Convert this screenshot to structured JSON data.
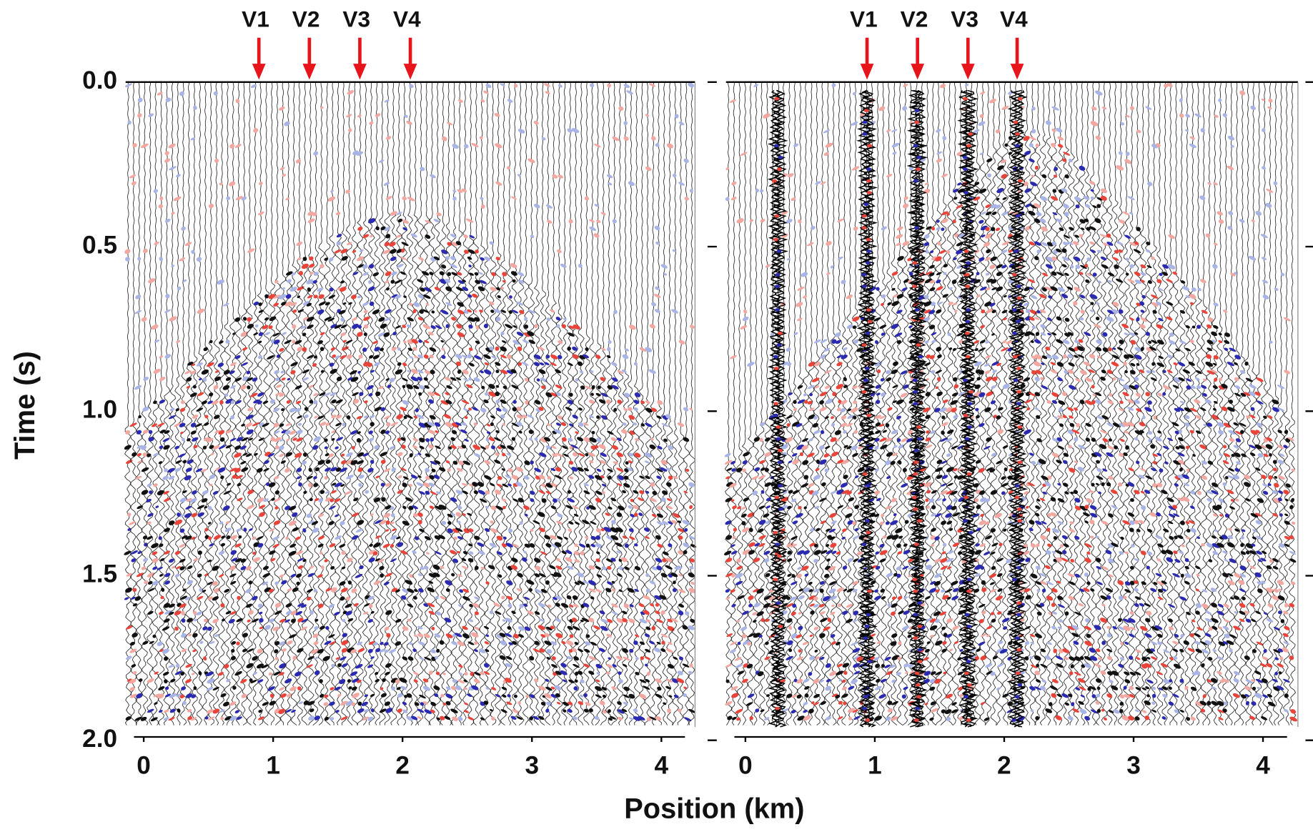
{
  "chart_data": [
    {
      "type": "seismic",
      "xlabel": "Position (km)",
      "ylabel": "Time (s)",
      "xlim": [
        -0.14,
        4.26
      ],
      "xticks": [
        0,
        1,
        2,
        3,
        4
      ],
      "ylim": [
        0,
        2
      ],
      "yticks": [
        {
          "value": 0,
          "label": "0.0"
        },
        0.5,
        {
          "value": 1,
          "label": "1.0"
        },
        1.5,
        {
          "value": 2,
          "label": "2.0"
        }
      ],
      "annotations": [
        {
          "text": "V1",
          "x": 0.89
        },
        {
          "text": "V2",
          "x": 1.28
        },
        {
          "text": "V3",
          "x": 1.67
        },
        {
          "text": "V4",
          "x": 2.06
        }
      ],
      "annotation_color": "#e8141b"
    },
    {
      "type": "seismic",
      "xlim": [
        -0.15,
        4.27
      ],
      "xticks": [
        0,
        1,
        2,
        3,
        4
      ],
      "ylim": [
        0,
        2
      ],
      "annotations": [
        {
          "text": "V1",
          "x": 0.94
        },
        {
          "text": "V2",
          "x": 1.33
        },
        {
          "text": "V3",
          "x": 1.72
        },
        {
          "text": "V4",
          "x": 2.1
        }
      ],
      "annotation_color": "#e8141b"
    }
  ]
}
